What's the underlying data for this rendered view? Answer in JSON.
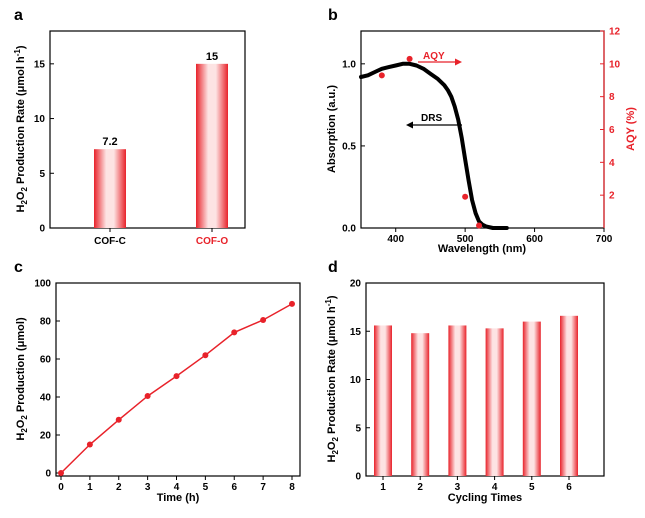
{
  "colors": {
    "red": "#e8222a",
    "black": "#000000",
    "light_red": "#fde3e3"
  },
  "chart_data": [
    {
      "panel": "a",
      "type": "bar",
      "ylabel": {
        "main": "H",
        "sub": "2",
        "mid": "O",
        "sub2": "2",
        "rest": " Production Rate  (μmol h",
        "sup": "-1",
        "end": ")"
      },
      "categories": [
        "COF-C",
        "COF-O"
      ],
      "category_colors": [
        "#000000",
        "#e8222a"
      ],
      "values": [
        7.2,
        15
      ],
      "value_labels": [
        "7.2",
        "15"
      ],
      "ylim": [
        0,
        18
      ],
      "yticks": [
        0,
        5,
        10,
        15
      ],
      "ytick_labels": [
        "0",
        "5",
        "10",
        "15"
      ]
    },
    {
      "panel": "b",
      "type": "line",
      "xlabel": "Wavelength (nm)",
      "ylabel_left": "Absorption (a.u.)",
      "ylabel_right": "AQY (%)",
      "xlim": [
        350,
        700
      ],
      "xticks": [
        400,
        500,
        600,
        700
      ],
      "xtick_labels": [
        "400",
        "500",
        "600",
        "700"
      ],
      "ylim_left": [
        0,
        1.2
      ],
      "yticks_left": [
        0.0,
        0.5,
        1.0
      ],
      "ytick_labels_left": [
        "0.0",
        "0.5",
        "1.0"
      ],
      "ylim_right": [
        0,
        12
      ],
      "yticks_right": [
        2,
        4,
        6,
        8,
        10,
        12
      ],
      "ytick_labels_right": [
        "2",
        "4",
        "6",
        "8",
        "10",
        "12"
      ],
      "drs_series": {
        "name": "DRS",
        "x": [
          350,
          360,
          370,
          380,
          390,
          400,
          410,
          420,
          430,
          440,
          450,
          460,
          470,
          475,
          480,
          485,
          490,
          495,
          500,
          505,
          510,
          515,
          520,
          525,
          530,
          540,
          560
        ],
        "y": [
          0.92,
          0.93,
          0.95,
          0.97,
          0.98,
          0.99,
          1.0,
          1.0,
          0.99,
          0.97,
          0.94,
          0.91,
          0.87,
          0.84,
          0.8,
          0.74,
          0.66,
          0.55,
          0.42,
          0.29,
          0.17,
          0.09,
          0.04,
          0.02,
          0.01,
          0.0,
          0.0
        ]
      },
      "aqy_series": {
        "name": "AQY",
        "x": [
          380,
          420,
          500,
          520
        ],
        "y": [
          9.3,
          10.3,
          1.9,
          0.15
        ]
      },
      "annotations": {
        "aqy": "AQY",
        "drs": "DRS"
      }
    },
    {
      "panel": "c",
      "type": "line",
      "xlabel": "Time (h)",
      "ylabel": {
        "main": "H",
        "sub": "2",
        "mid": "O",
        "sub2": "2",
        "rest": " Production  (μmol)"
      },
      "x": [
        0,
        1,
        2,
        3,
        4,
        5,
        6,
        7,
        8
      ],
      "y": [
        0,
        15,
        28,
        40.5,
        51,
        62,
        74,
        80.5,
        89
      ],
      "xlim": [
        0,
        8
      ],
      "xticks": [
        0,
        1,
        2,
        3,
        4,
        5,
        6,
        7,
        8
      ],
      "xtick_labels": [
        "0",
        "1",
        "2",
        "3",
        "4",
        "5",
        "6",
        "7",
        "8"
      ],
      "ylim": [
        0,
        100
      ],
      "yticks": [
        0,
        20,
        40,
        60,
        80,
        100
      ],
      "ytick_labels": [
        "0",
        "20",
        "40",
        "60",
        "80",
        "100"
      ]
    },
    {
      "panel": "d",
      "type": "bar",
      "xlabel": "Cycling Times",
      "ylabel": {
        "main": "H",
        "sub": "2",
        "mid": "O",
        "sub2": "2",
        "rest": " Production Rate  (μmol h",
        "sup": "-1",
        "end": ")"
      },
      "categories": [
        "1",
        "2",
        "3",
        "4",
        "5",
        "6"
      ],
      "values": [
        15.6,
        14.8,
        15.6,
        15.3,
        16.0,
        16.6
      ],
      "ylim": [
        0,
        20
      ],
      "yticks": [
        0,
        5,
        10,
        15,
        20
      ],
      "ytick_labels": [
        "0",
        "5",
        "10",
        "15",
        "20"
      ]
    }
  ]
}
